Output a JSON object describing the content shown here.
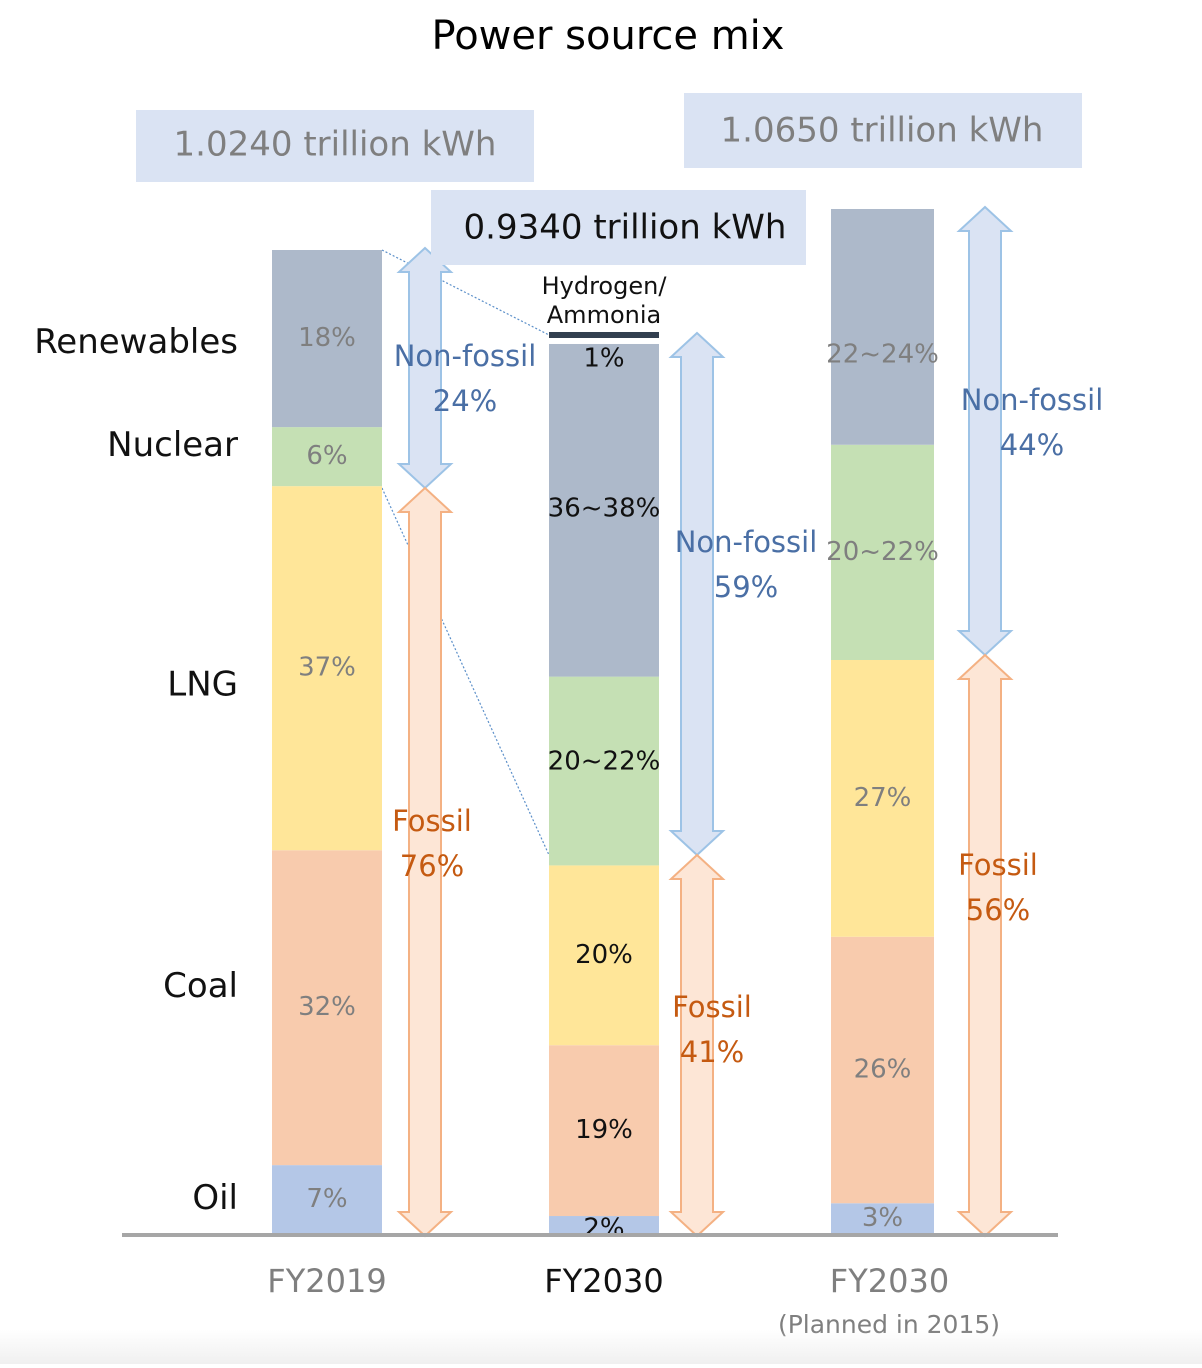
{
  "chart_data": {
    "type": "bar",
    "stacked": true,
    "title": "Power source mix",
    "unit": "%",
    "category_labels": [
      "Oil",
      "Coal",
      "LNG",
      "Nuclear",
      "Renewables"
    ],
    "bars": [
      {
        "label": "FY2019",
        "sublabel": "",
        "total": "1.0240 trillion kWh",
        "segments": [
          {
            "source": "Oil",
            "value": 7,
            "label": "7%"
          },
          {
            "source": "Coal",
            "value": 32,
            "label": "32%"
          },
          {
            "source": "LNG",
            "value": 37,
            "label": "37%"
          },
          {
            "source": "Nuclear",
            "value": 6,
            "label": "6%"
          },
          {
            "source": "Renewables",
            "value": 18,
            "label": "18%"
          }
        ],
        "groups": [
          {
            "name": "Non-fossil",
            "pct": "24%"
          },
          {
            "name": "Fossil",
            "pct": "76%"
          }
        ]
      },
      {
        "label": "FY2030",
        "sublabel": "",
        "total": "0.9340 trillion kWh",
        "segments": [
          {
            "source": "Oil",
            "value": 2,
            "label": "2%"
          },
          {
            "source": "Coal",
            "value": 19,
            "label": "19%"
          },
          {
            "source": "LNG",
            "value": 20,
            "label": "20%"
          },
          {
            "source": "Nuclear",
            "value": 21,
            "label": "20~22%"
          },
          {
            "source": "Renewables",
            "value": 37,
            "label": "36~38%"
          },
          {
            "source": "Hydrogen/Ammonia",
            "value": 1,
            "label": "1%"
          }
        ],
        "groups": [
          {
            "name": "Non-fossil",
            "pct": "59%"
          },
          {
            "name": "Fossil",
            "pct": "41%"
          }
        ],
        "annotation": [
          "Hydrogen/",
          "Ammonia"
        ]
      },
      {
        "label": "FY2030",
        "sublabel": "(Planned in 2015)",
        "total": "1.0650 trillion kWh",
        "segments": [
          {
            "source": "Oil",
            "value": 3,
            "label": "3%"
          },
          {
            "source": "Coal",
            "value": 26,
            "label": "26%"
          },
          {
            "source": "LNG",
            "value": 27,
            "label": "27%"
          },
          {
            "source": "Nuclear",
            "value": 21,
            "label": "20~22%"
          },
          {
            "source": "Renewables",
            "value": 23,
            "label": "22~24%"
          }
        ],
        "groups": [
          {
            "name": "Non-fossil",
            "pct": "44%"
          },
          {
            "name": "Fossil",
            "pct": "56%"
          }
        ]
      }
    ],
    "colors": {
      "Oil": "#b4c7e7",
      "Coal": "#f8cbad",
      "LNG": "#ffe699",
      "Nuclear": "#c5e0b4",
      "Renewables": "#adb9ca",
      "Hydrogen/Ammonia": "#323f4f",
      "non_fossil_text": "#4a6fa5",
      "fossil_text": "#c55a11",
      "non_fossil_arrow": "#dae3f3",
      "non_fossil_arrow_stroke": "#9dc3e6",
      "fossil_arrow": "#fde6d6",
      "fossil_arrow_stroke": "#f4b183",
      "total_box": "#dae3f3",
      "muted_text": "#7f7f7f",
      "baseline": "#a6a6a6"
    }
  }
}
